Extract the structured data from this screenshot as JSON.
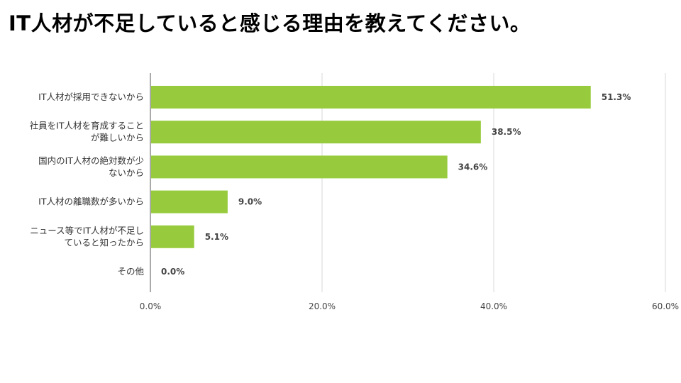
{
  "title": "IT人材が不足していると感じる理由を教えてください。",
  "colors": {
    "bar": "#97cb3d",
    "grid": "#d9d9d9",
    "axis": "#555555",
    "text": "#333333"
  },
  "chart_data": {
    "type": "bar",
    "orientation": "horizontal",
    "categories": [
      [
        "IT人材が採用できないから"
      ],
      [
        "社員をIT人材を育成すること",
        "が難しいから"
      ],
      [
        "国内のIT人材の絶対数が少",
        "ないから"
      ],
      [
        "IT人材の離職数が多いから"
      ],
      [
        "ニュース等でIT人材が不足し",
        "ていると知ったから"
      ],
      [
        "その他"
      ]
    ],
    "values": [
      51.3,
      38.5,
      34.6,
      9.0,
      5.1,
      0.0
    ],
    "value_labels": [
      "51.3%",
      "38.5%",
      "34.6%",
      "9.0%",
      "5.1%",
      "0.0%"
    ],
    "xlim": [
      0,
      60
    ],
    "xticks": [
      0,
      20,
      40,
      60
    ],
    "xtick_labels": [
      "0.0%",
      "20.0%",
      "40.0%",
      "60.0%"
    ],
    "grid": true,
    "legend": "none"
  }
}
